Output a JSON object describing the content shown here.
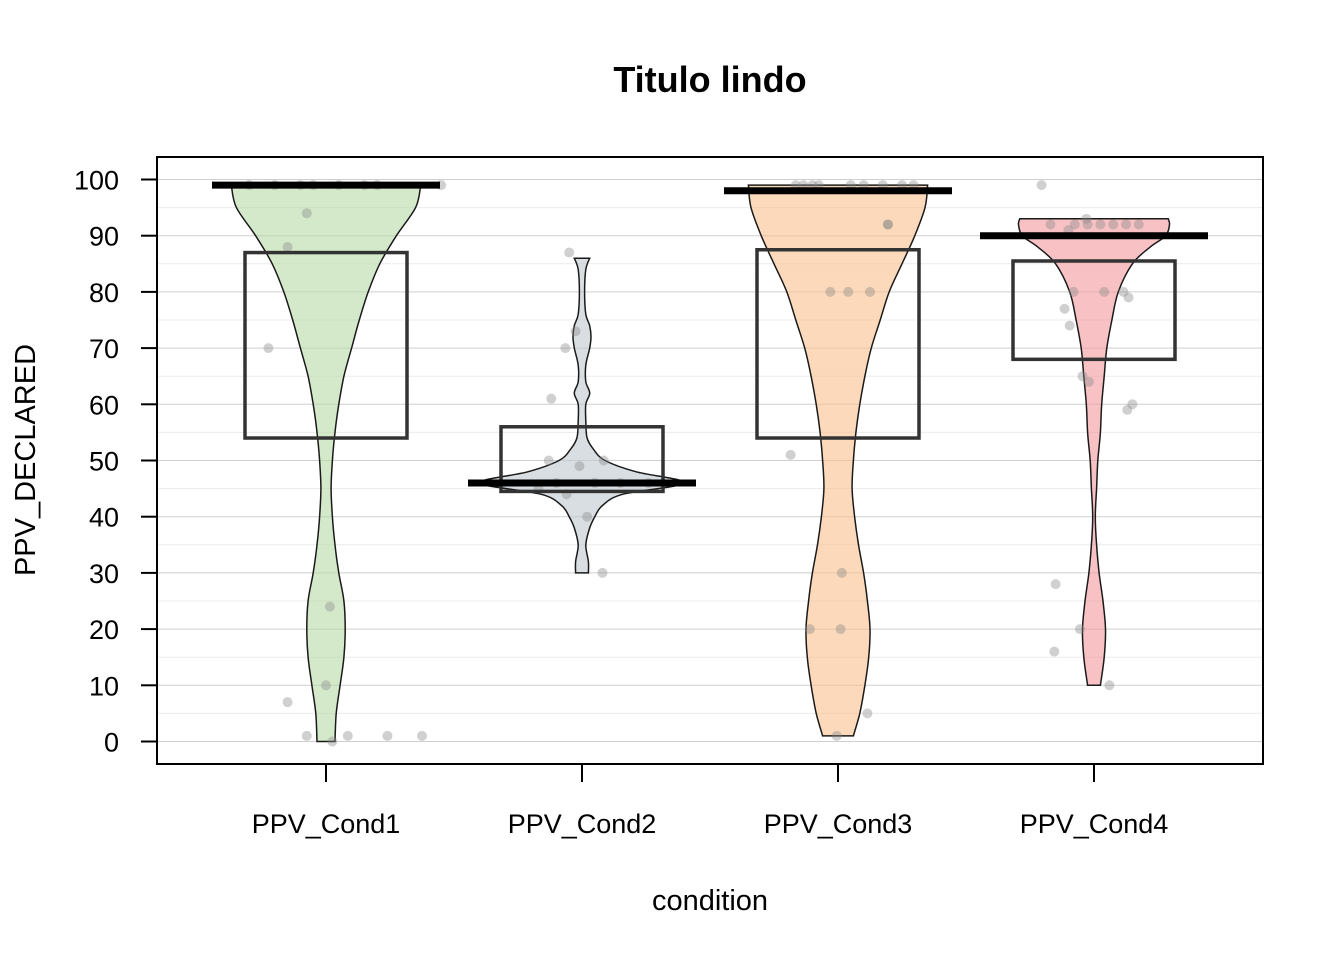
{
  "chart_data": {
    "type": "pirateplot",
    "title": "Titulo lindo",
    "xlabel": "condition",
    "ylabel": "PPV_DECLARED",
    "ylim": [
      -4,
      104
    ],
    "yticks": [
      0,
      10,
      20,
      30,
      40,
      50,
      60,
      70,
      80,
      90,
      100
    ],
    "ytick_labels": [
      "0",
      "10",
      "20",
      "30",
      "40",
      "50",
      "60",
      "70",
      "80",
      "90",
      "100"
    ],
    "grid": true,
    "categories": [
      "PPV_Cond1",
      "PPV_Cond2",
      "PPV_Cond3",
      "PPV_Cond4"
    ],
    "groups": [
      {
        "name": "PPV_Cond1",
        "color": "#b5dba6",
        "center": 99,
        "box": [
          54,
          87
        ],
        "violin": [
          [
            0,
            0.07
          ],
          [
            5,
            0.08
          ],
          [
            10,
            0.11
          ],
          [
            15,
            0.14
          ],
          [
            20,
            0.15
          ],
          [
            25,
            0.14
          ],
          [
            30,
            0.1
          ],
          [
            35,
            0.07
          ],
          [
            40,
            0.05
          ],
          [
            45,
            0.04
          ],
          [
            50,
            0.05
          ],
          [
            55,
            0.07
          ],
          [
            60,
            0.1
          ],
          [
            65,
            0.14
          ],
          [
            70,
            0.2
          ],
          [
            75,
            0.26
          ],
          [
            80,
            0.33
          ],
          [
            85,
            0.42
          ],
          [
            90,
            0.55
          ],
          [
            95,
            0.7
          ],
          [
            99,
            0.74
          ]
        ],
        "points": [
          [
            99,
            -0.6
          ],
          [
            99,
            -0.4
          ],
          [
            99,
            -0.2
          ],
          [
            99,
            0.1
          ],
          [
            99,
            0.4
          ],
          [
            99,
            0.9
          ],
          [
            99,
            0.3
          ],
          [
            99,
            -0.1
          ],
          [
            94,
            -0.15
          ],
          [
            88,
            -0.3
          ],
          [
            70,
            -0.45
          ],
          [
            24,
            0.03
          ],
          [
            10,
            0.0
          ],
          [
            7,
            -0.3
          ],
          [
            1,
            -0.15
          ],
          [
            1,
            0.17
          ],
          [
            1,
            0.48
          ],
          [
            1,
            0.75
          ],
          [
            0,
            0.05
          ]
        ]
      },
      {
        "name": "PPV_Cond2",
        "color": "#c0c8d0",
        "center": 46,
        "box": [
          44.5,
          56
        ],
        "violin": [
          [
            30,
            0.05
          ],
          [
            32,
            0.05
          ],
          [
            35,
            0.03
          ],
          [
            38,
            0.06
          ],
          [
            40,
            0.1
          ],
          [
            42,
            0.16
          ],
          [
            44,
            0.32
          ],
          [
            46,
            0.8
          ],
          [
            48,
            0.42
          ],
          [
            50,
            0.18
          ],
          [
            52,
            0.09
          ],
          [
            54,
            0.04
          ],
          [
            57,
            0.03
          ],
          [
            60,
            0.03
          ],
          [
            62,
            0.06
          ],
          [
            64,
            0.03
          ],
          [
            67,
            0.03
          ],
          [
            70,
            0.06
          ],
          [
            72,
            0.07
          ],
          [
            74,
            0.06
          ],
          [
            76,
            0.03
          ],
          [
            80,
            0.02
          ],
          [
            84,
            0.03
          ],
          [
            86,
            0.06
          ]
        ],
        "points": [
          [
            87,
            -0.1
          ],
          [
            73,
            -0.05
          ],
          [
            70,
            -0.13
          ],
          [
            61,
            -0.24
          ],
          [
            50,
            -0.26
          ],
          [
            49,
            -0.02
          ],
          [
            46,
            -0.2
          ],
          [
            46,
            0.1
          ],
          [
            46,
            0.3
          ],
          [
            46,
            0.52
          ],
          [
            45,
            -0.34
          ],
          [
            44,
            -0.12
          ],
          [
            40,
            0.04
          ],
          [
            50,
            0.17
          ],
          [
            30,
            0.16
          ]
        ]
      },
      {
        "name": "PPV_Cond3",
        "color": "#f8c08c",
        "center": 98,
        "box": [
          54,
          87.5
        ],
        "violin": [
          [
            1,
            0.12
          ],
          [
            5,
            0.17
          ],
          [
            10,
            0.21
          ],
          [
            15,
            0.24
          ],
          [
            20,
            0.25
          ],
          [
            25,
            0.23
          ],
          [
            30,
            0.2
          ],
          [
            35,
            0.16
          ],
          [
            40,
            0.13
          ],
          [
            45,
            0.11
          ],
          [
            50,
            0.12
          ],
          [
            55,
            0.14
          ],
          [
            60,
            0.17
          ],
          [
            65,
            0.21
          ],
          [
            70,
            0.26
          ],
          [
            75,
            0.33
          ],
          [
            80,
            0.4
          ],
          [
            85,
            0.5
          ],
          [
            90,
            0.6
          ],
          [
            95,
            0.68
          ],
          [
            99,
            0.7
          ]
        ],
        "points": [
          [
            99,
            -0.33
          ],
          [
            99,
            -0.27
          ],
          [
            99,
            -0.2
          ],
          [
            99,
            -0.15
          ],
          [
            99,
            0.1
          ],
          [
            99,
            0.2
          ],
          [
            99,
            0.35
          ],
          [
            99,
            0.5
          ],
          [
            92,
            0.39
          ],
          [
            80,
            -0.06
          ],
          [
            80,
            0.08
          ],
          [
            80,
            0.25
          ],
          [
            51,
            -0.37
          ],
          [
            30,
            0.03
          ],
          [
            20,
            -0.22
          ],
          [
            20,
            0.02
          ],
          [
            5,
            0.23
          ],
          [
            1,
            -0.01
          ],
          [
            99,
            0.59
          ],
          [
            92,
            0.39
          ]
        ]
      },
      {
        "name": "PPV_Cond4",
        "color": "#f4999c",
        "center": 90,
        "box": [
          68,
          85.5
        ],
        "violin": [
          [
            10,
            0.05
          ],
          [
            15,
            0.08
          ],
          [
            20,
            0.09
          ],
          [
            25,
            0.07
          ],
          [
            30,
            0.04
          ],
          [
            35,
            0.02
          ],
          [
            40,
            0.01
          ],
          [
            45,
            0.02
          ],
          [
            50,
            0.03
          ],
          [
            55,
            0.05
          ],
          [
            60,
            0.06
          ],
          [
            65,
            0.08
          ],
          [
            70,
            0.1
          ],
          [
            75,
            0.14
          ],
          [
            80,
            0.19
          ],
          [
            85,
            0.3
          ],
          [
            88,
            0.44
          ],
          [
            90,
            0.56
          ],
          [
            92,
            0.59
          ],
          [
            93,
            0.58
          ]
        ],
        "points": [
          [
            99,
            -0.41
          ],
          [
            92,
            -0.34
          ],
          [
            92,
            -0.15
          ],
          [
            92,
            -0.05
          ],
          [
            92,
            0.05
          ],
          [
            92,
            0.15
          ],
          [
            92,
            0.25
          ],
          [
            92,
            0.35
          ],
          [
            93,
            -0.06
          ],
          [
            91,
            -0.2
          ],
          [
            80,
            -0.16
          ],
          [
            80,
            0.08
          ],
          [
            80,
            0.23
          ],
          [
            79,
            0.27
          ],
          [
            77,
            -0.23
          ],
          [
            74,
            -0.19
          ],
          [
            65,
            -0.09
          ],
          [
            64,
            -0.04
          ],
          [
            60,
            0.3
          ],
          [
            59,
            0.26
          ],
          [
            28,
            -0.3
          ],
          [
            20,
            -0.11
          ],
          [
            16,
            -0.31
          ],
          [
            10,
            0.12
          ]
        ]
      }
    ]
  }
}
